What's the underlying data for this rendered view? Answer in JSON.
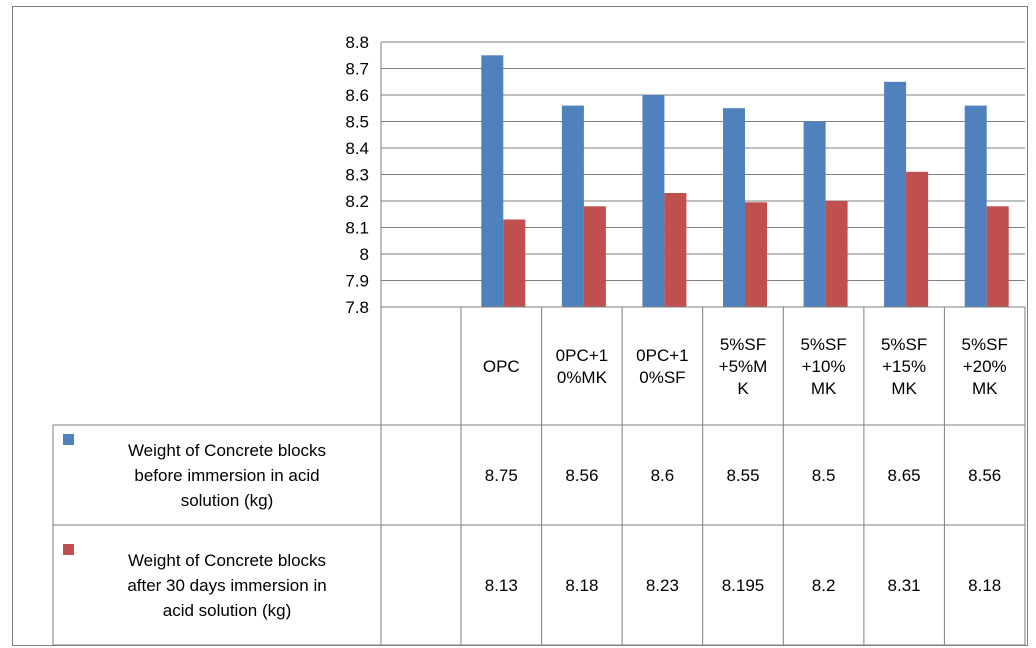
{
  "chart_data": {
    "type": "bar",
    "categories": [
      [
        "OPC"
      ],
      [
        "0PC+1",
        "0%MK"
      ],
      [
        "0PC+1",
        "0%SF"
      ],
      [
        "5%SF",
        "+5%M",
        "K"
      ],
      [
        "5%SF",
        "+10%",
        "MK"
      ],
      [
        "5%SF",
        "+15%",
        "MK"
      ],
      [
        "5%SF",
        "+20%",
        "MK"
      ]
    ],
    "series": [
      {
        "name": [
          "Weight of Concrete blocks",
          "before immersion in acid",
          "solution (kg)"
        ],
        "color": "#4f81bd",
        "values": [
          8.75,
          8.56,
          8.6,
          8.55,
          8.5,
          8.65,
          8.56
        ],
        "labels": [
          "8.75",
          "8.56",
          "8.6",
          "8.55",
          "8.5",
          "8.65",
          "8.56"
        ]
      },
      {
        "name": [
          "Weight of Concrete blocks",
          "after 30 days immersion in",
          "acid solution (kg)"
        ],
        "color": "#c0504d",
        "values": [
          8.13,
          8.18,
          8.23,
          8.195,
          8.2,
          8.31,
          8.18
        ],
        "labels": [
          "8.13",
          "8.18",
          "8.23",
          "8.195",
          "8.2",
          "8.31",
          "8.18"
        ]
      }
    ],
    "yticks": [
      "7.8",
      "7.9",
      "8",
      "8.1",
      "8.2",
      "8.3",
      "8.4",
      "8.5",
      "8.6",
      "8.7",
      "8.8"
    ],
    "ylim": [
      7.8,
      8.8
    ],
    "grid": true,
    "legend": "data-table"
  }
}
